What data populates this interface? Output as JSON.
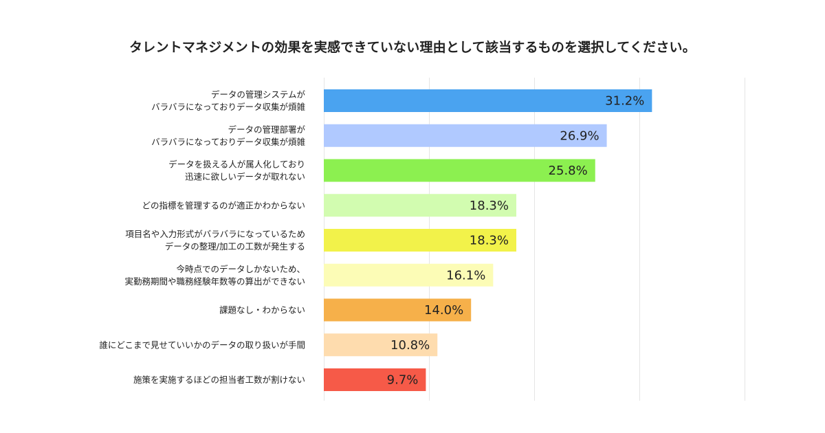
{
  "chart_data": {
    "type": "bar",
    "orientation": "horizontal",
    "title": "タレントマネジメントの効果を実感できていない理由として該当するものを選択してください。",
    "xlim": [
      0,
      40
    ],
    "grid": true,
    "unit": "%",
    "categories": [
      [
        "データの管理システムが",
        "バラバラになっておりデータ収集が煩雑"
      ],
      [
        "データの管理部署が",
        "バラバラになっておりデータ収集が煩雑"
      ],
      [
        "データを扱える人が属人化しており",
        "迅速に欲しいデータが取れない"
      ],
      [
        "どの指標を管理するのが適正かわからない"
      ],
      [
        "項目名や入力形式がバラバラになっているため",
        "データの整理/加工の工数が発生する"
      ],
      [
        "今時点でのデータしかないため、",
        "実勤務期間や職務経験年数等の算出ができない"
      ],
      [
        "課題なし・わからない"
      ],
      [
        "誰にどこまで見せていいかのデータの取り扱いが手間"
      ],
      [
        "施策を実施するほどの担当者工数が割けない"
      ]
    ],
    "values": [
      31.2,
      26.9,
      25.8,
      18.3,
      18.3,
      16.1,
      14.0,
      10.8,
      9.7
    ],
    "value_labels": [
      "31.2%",
      "26.9%",
      "25.8%",
      "18.3%",
      "18.3%",
      "16.1%",
      "14.0%",
      "10.8%",
      "9.7%"
    ],
    "colors": [
      "#4aa3f0",
      "#b0c9ff",
      "#8cf050",
      "#d2fcb0",
      "#f2f24a",
      "#fcfcb6",
      "#f6b04a",
      "#fedcae",
      "#f65a48"
    ]
  }
}
